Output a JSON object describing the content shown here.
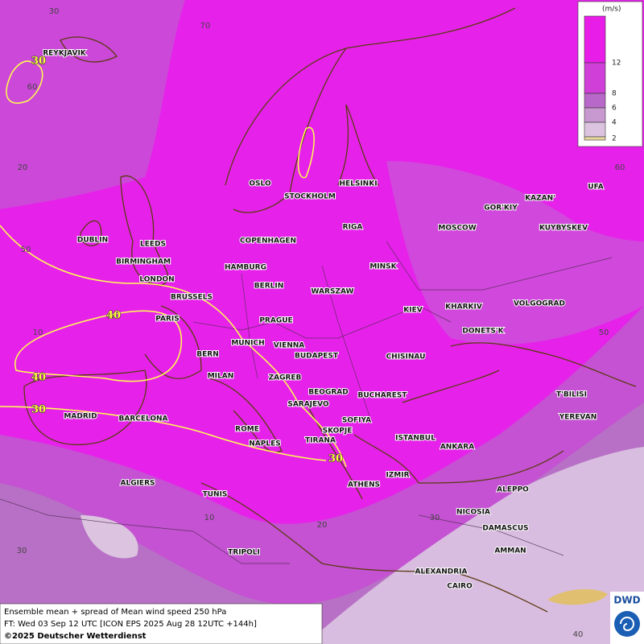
{
  "legend": {
    "unit": "(m/s)",
    "labels": [
      "12",
      "8",
      "6",
      "4",
      "2"
    ]
  },
  "grid_labels": [
    "30",
    "70",
    "60",
    "20",
    "50",
    "10",
    "20",
    "10",
    "30",
    "30",
    "40",
    "60",
    "50"
  ],
  "contour_labels": [
    "30",
    "40",
    "40",
    "30",
    "30"
  ],
  "cities": [
    "REYKJAVIK",
    "OSLO",
    "STOCKHOLM",
    "HELSINKI",
    "DUBLIN",
    "LEEDS",
    "COPENHAGEN",
    "RIGA",
    "MOSCOW",
    "GOR'KIY",
    "KAZAN'",
    "UFA",
    "KUYBYSKEV",
    "BIRMINGHAM",
    "HAMBURG",
    "MINSK",
    "LONDON",
    "BERLIN",
    "WARSZAW",
    "BRUSSELS",
    "KIEV",
    "KHARKIV",
    "VOLGOGRAD",
    "PARIS",
    "PRAGUE",
    "DONETS'K",
    "MUNICH",
    "VIENNA",
    "BERN",
    "BUDAPEST",
    "CHISINAU",
    "MILAN",
    "ZAGREB",
    "BEOGRAD",
    "BUCHAREST",
    "T'BILISI",
    "SARAJEVO",
    "MADRID",
    "BARCELONA",
    "YEREVAN",
    "SOFIYA",
    "ROME",
    "SKOPJE",
    "TIRANA",
    "ISTANBUL",
    "NAPLES",
    "ANKARA",
    "IZMIR",
    "ALGIERS",
    "ATHENS",
    "ALEPPO",
    "TUNIS",
    "NICOSIA",
    "DAMASCUS",
    "TRIPOLI",
    "AMMAN",
    "ALEXANDRIA",
    "CAIRO"
  ],
  "footer": {
    "line1": "Ensemble mean + spread of Mean wind speed 250 hPa",
    "line2": "FT: Wed 03 Sep 12 UTC [ICON EPS 2025 Aug 28 12UTC +144h]",
    "line3": "©2025 Deutscher Wetterdienst"
  },
  "logo": "DWD"
}
